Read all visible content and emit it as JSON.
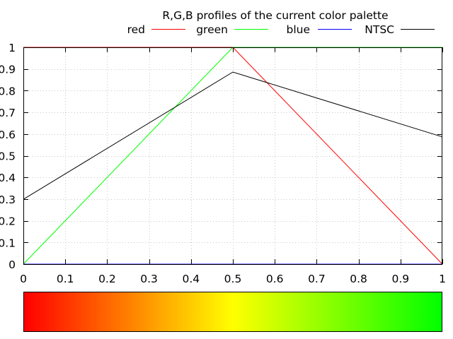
{
  "chart_data": {
    "type": "line",
    "title": "R,G,B profiles of the current color palette",
    "xlabel": "",
    "ylabel": "",
    "xlim": [
      0,
      1
    ],
    "ylim": [
      0,
      1
    ],
    "grid": true,
    "legend_position": "top",
    "x_ticks": [
      "0",
      "0.1",
      "0.2",
      "0.3",
      "0.4",
      "0.5",
      "0.6",
      "0.7",
      "0.8",
      "0.9",
      "1"
    ],
    "y_ticks": [
      "0",
      "0.1",
      "0.2",
      "0.3",
      "0.4",
      "0.5",
      "0.6",
      "0.7",
      "0.8",
      "0.9",
      "1"
    ],
    "series": [
      {
        "name": "red",
        "color": "#ff0000",
        "x": [
          0,
          0.5,
          1
        ],
        "y": [
          1,
          1,
          0
        ]
      },
      {
        "name": "green",
        "color": "#00ff00",
        "x": [
          0,
          0.5,
          1
        ],
        "y": [
          0,
          1,
          1
        ]
      },
      {
        "name": "blue",
        "color": "#0000ff",
        "x": [
          0,
          1
        ],
        "y": [
          0,
          0
        ]
      },
      {
        "name": "NTSC",
        "color": "#000000",
        "x": [
          0,
          0.5,
          1
        ],
        "y": [
          0.299,
          0.886,
          0.587
        ]
      }
    ],
    "colorbar": {
      "stops": [
        {
          "pos": 0,
          "color": "#ff0000"
        },
        {
          "pos": 0.5,
          "color": "#ffff00"
        },
        {
          "pos": 1,
          "color": "#00ff00"
        }
      ]
    }
  }
}
